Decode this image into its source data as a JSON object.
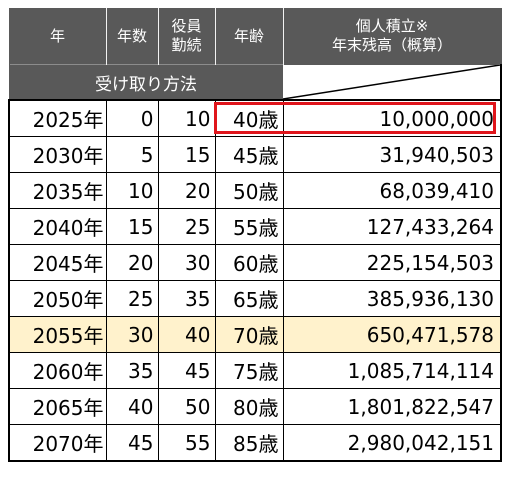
{
  "header": {
    "year": "年",
    "years_count": "年数",
    "officer_tenure": [
      "役員",
      "勤続"
    ],
    "age": "年齢",
    "balance": [
      "個人積立※",
      "年末残高（概算）"
    ],
    "receive_method": "受け取り方法"
  },
  "rows": [
    {
      "year": "2025年",
      "n": "0",
      "tenure": "10",
      "age": "40歳",
      "balance": "10,000,000"
    },
    {
      "year": "2030年",
      "n": "5",
      "tenure": "15",
      "age": "45歳",
      "balance": "31,940,503"
    },
    {
      "year": "2035年",
      "n": "10",
      "tenure": "20",
      "age": "50歳",
      "balance": "68,039,410"
    },
    {
      "year": "2040年",
      "n": "15",
      "tenure": "25",
      "age": "55歳",
      "balance": "127,433,264"
    },
    {
      "year": "2045年",
      "n": "20",
      "tenure": "30",
      "age": "60歳",
      "balance": "225,154,503"
    },
    {
      "year": "2050年",
      "n": "25",
      "tenure": "35",
      "age": "65歳",
      "balance": "385,936,130"
    },
    {
      "year": "2055年",
      "n": "30",
      "tenure": "40",
      "age": "70歳",
      "balance": "650,471,578"
    },
    {
      "year": "2060年",
      "n": "35",
      "tenure": "45",
      "age": "75歳",
      "balance": "1,085,714,114"
    },
    {
      "year": "2065年",
      "n": "40",
      "tenure": "50",
      "age": "80歳",
      "balance": "1,801,822,547"
    },
    {
      "year": "2070年",
      "n": "45",
      "tenure": "55",
      "age": "85歳",
      "balance": "2,980,042,151"
    }
  ],
  "highlight_row_year": "2055年",
  "emphasized_row_year": "2025年",
  "colors": {
    "header_bg": "#595959",
    "highlight_bg": "#fff2cc",
    "emphasis_border": "#e0151b"
  }
}
